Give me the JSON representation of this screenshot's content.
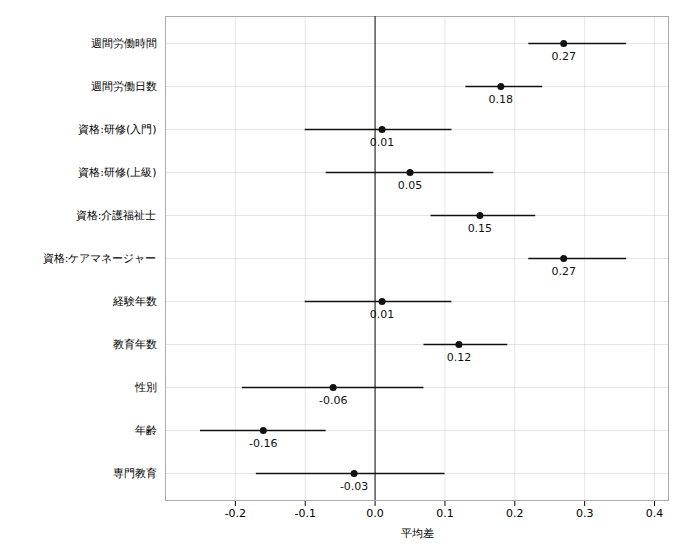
{
  "chart_data": {
    "type": "forest",
    "categories": [
      "週間労働時間",
      "週間労働日数",
      "資格:研修(入門)",
      "資格:研修(上級)",
      "資格:介護福祉士",
      "資格:ケアマネージャー",
      "経験年数",
      "教育年数",
      "性別",
      "年齢",
      "専門教育"
    ],
    "values": [
      0.27,
      0.18,
      0.01,
      0.05,
      0.15,
      0.27,
      0.01,
      0.12,
      -0.06,
      -0.16,
      -0.03
    ],
    "ci_low": [
      0.22,
      0.13,
      -0.1,
      -0.07,
      0.08,
      0.22,
      -0.1,
      0.07,
      -0.19,
      -0.25,
      -0.17
    ],
    "ci_high": [
      0.36,
      0.24,
      0.11,
      0.17,
      0.23,
      0.36,
      0.11,
      0.19,
      0.07,
      -0.07,
      0.1
    ],
    "xlabel": "平均差",
    "xlim": [
      -0.3,
      0.42
    ],
    "xticks": [
      -0.2,
      -0.1,
      {
        "value": 0.0,
        "label": "0.0"
      },
      0.1,
      0.2,
      0.3,
      0.4
    ],
    "reference_line": 0,
    "orientation": "horizontal",
    "color": "#111111",
    "grid": true,
    "data_labels": true
  }
}
